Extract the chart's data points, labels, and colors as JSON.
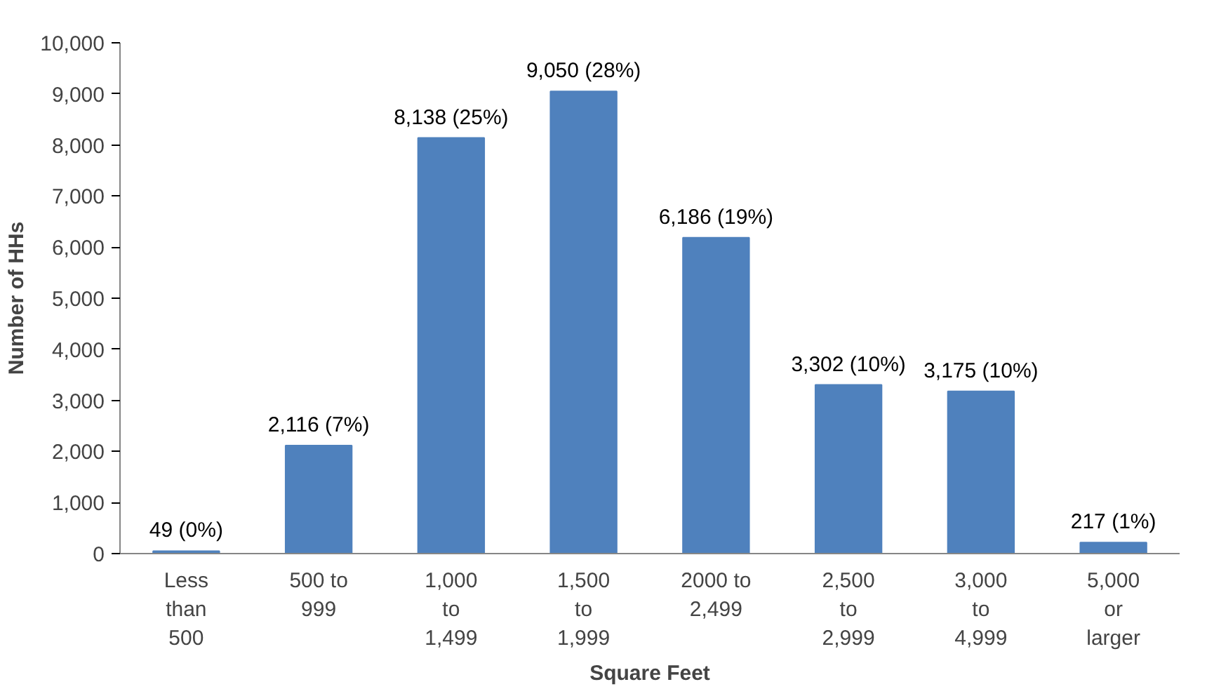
{
  "chart_data": {
    "type": "bar",
    "xlabel": "Square Feet",
    "ylabel": "Number of HHs",
    "categories": [
      "Less\nthan\n500",
      "500 to\n999",
      "1,000\nto\n1,499",
      "1,500\nto\n1,999",
      "2000 to\n2,499",
      "2,500\nto\n2,999",
      "3,000\nto\n4,999",
      "5,000\nor\nlarger"
    ],
    "values": [
      49,
      2116,
      8138,
      9050,
      6186,
      3302,
      3175,
      217
    ],
    "value_labels": [
      "49 (0%)",
      "2,116 (7%)",
      "8,138 (25%)",
      "9,050 (28%)",
      "6,186 (19%)",
      "3,302 (10%)",
      "3,175 (10%)",
      "217 (1%)"
    ],
    "color": "#4f81bd",
    "ylim": [
      0,
      10000
    ],
    "yticks": [
      {
        "value": 0,
        "label": "0"
      },
      {
        "value": 1000,
        "label": "1,000"
      },
      {
        "value": 2000,
        "label": "2,000"
      },
      {
        "value": 3000,
        "label": "3,000"
      },
      {
        "value": 4000,
        "label": "4,000"
      },
      {
        "value": 5000,
        "label": "5,000"
      },
      {
        "value": 6000,
        "label": "6,000"
      },
      {
        "value": 7000,
        "label": "7,000"
      },
      {
        "value": 8000,
        "label": "8,000"
      },
      {
        "value": 9000,
        "label": "9,000"
      },
      {
        "value": 10000,
        "label": "10,000"
      }
    ],
    "grid": false
  }
}
